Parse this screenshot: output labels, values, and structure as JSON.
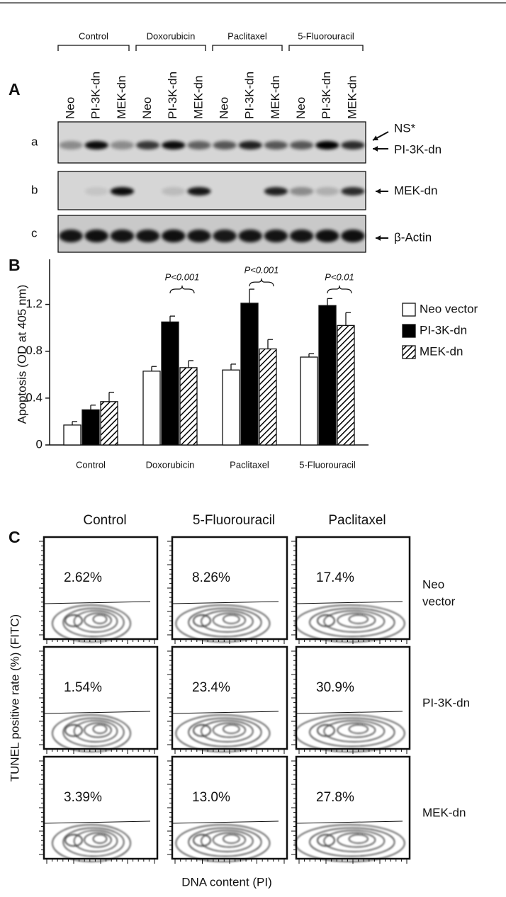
{
  "panel_labels": [
    "A",
    "B",
    "C"
  ],
  "blot": {
    "group_labels": [
      "Control",
      "Doxorubicin",
      "Paclitaxel",
      "5-Fluorouracil"
    ],
    "lane_labels": [
      "Neo",
      "PI-3K-dn",
      "MEK-dn",
      "Neo",
      "PI-3K-dn",
      "MEK-dn",
      "Neo",
      "PI-3K-dn",
      "MEK-dn",
      "Neo",
      "PI-3K-dn",
      "MEK-dn"
    ],
    "row_labels": [
      "a",
      "b",
      "c"
    ],
    "band_labels": [
      "NS*",
      "PI-3K-dn",
      "MEK-dn",
      "β-Actin"
    ]
  },
  "chart_data": {
    "type": "bar",
    "y_label": "Apoptosis (OD at 405 nm)",
    "categories": [
      "Control",
      "Doxorubicin",
      "Paclitaxel",
      "5-Fluorouracil"
    ],
    "series": [
      {
        "name": "Neo vector",
        "color": "#ffffff",
        "values": [
          0.17,
          0.63,
          0.64,
          0.75
        ],
        "errors": [
          0.03,
          0.04,
          0.05,
          0.03
        ]
      },
      {
        "name": "PI-3K-dn",
        "color": "#000000",
        "values": [
          0.3,
          1.05,
          1.21,
          1.19
        ],
        "errors": [
          0.04,
          0.05,
          0.12,
          0.06
        ]
      },
      {
        "name": "MEK-dn",
        "color": "#000000",
        "pattern": "hatch",
        "values": [
          0.37,
          0.66,
          0.82,
          1.02
        ],
        "errors": [
          0.08,
          0.06,
          0.08,
          0.11
        ]
      }
    ],
    "annotations": [
      null,
      "P<0.001",
      "P<0.001",
      "P<0.01"
    ],
    "ylim": [
      0,
      1.5
    ],
    "yticks": [
      0,
      0.4,
      0.8,
      1.2
    ],
    "legend": "right"
  },
  "flow": {
    "column_labels": [
      "Control",
      "5-Fluorouracil",
      "Paclitaxel"
    ],
    "row_labels": [
      [
        "Neo",
        "vector"
      ],
      [
        "PI-3K-dn"
      ],
      [
        "MEK-dn"
      ]
    ],
    "percentages": [
      [
        "2.62%",
        "8.26%",
        "17.4%"
      ],
      [
        "1.54%",
        "23.4%",
        "30.9%"
      ],
      [
        "3.39%",
        "13.0%",
        "27.8%"
      ]
    ],
    "y_label": "TUNEL positive rate (%) (FITC)",
    "x_label": "DNA content (PI)"
  }
}
